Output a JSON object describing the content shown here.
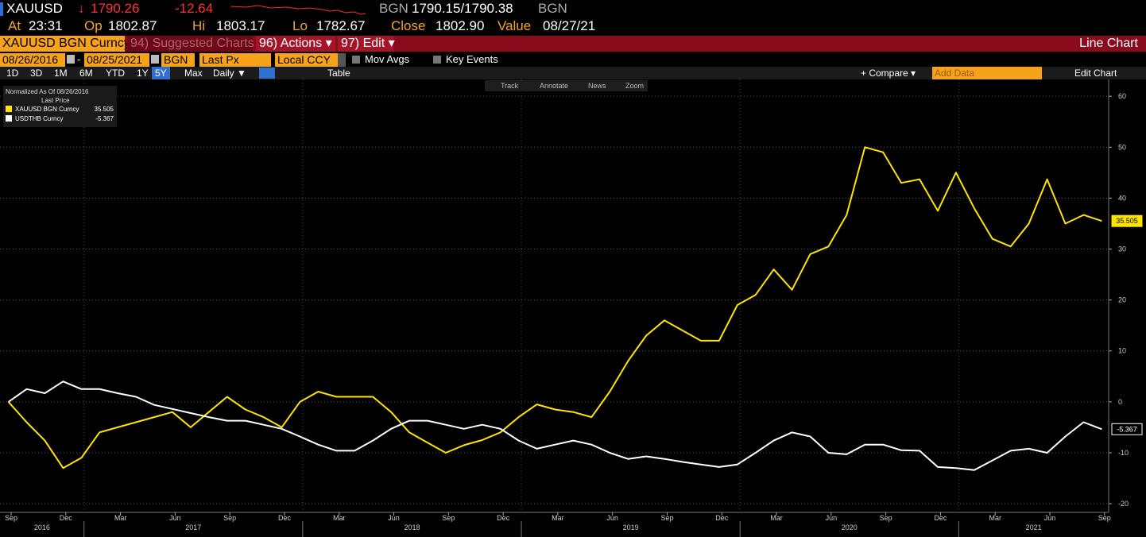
{
  "header": {
    "ticker": "XAUUSD",
    "direction": "↓",
    "last": "1790.26",
    "change": "-12.64",
    "source": "BGN",
    "bid_ask": "1790.15/1790.38",
    "source_2": "BGN",
    "stats": [
      {
        "label": "At",
        "value": "23:31"
      },
      {
        "label": "Op",
        "value": "1802.87"
      },
      {
        "label": "Hi",
        "value": "1803.17"
      },
      {
        "label": "Lo",
        "value": "1782.67"
      },
      {
        "label": "Close",
        "value": "1802.90"
      },
      {
        "label": "Value",
        "value": "08/27/21"
      }
    ]
  },
  "menu_bar": {
    "security": "XAUUSD BGN Curncy",
    "items": [
      "94) Suggested Charts",
      "96) Actions ▾",
      "97) Edit ▾"
    ],
    "view": "Line Chart"
  },
  "settings": {
    "start": "08/26/2016",
    "separator": "-",
    "end": "08/25/2021",
    "source": "BGN",
    "field": "Last Px",
    "currency": "Local CCY",
    "options": [
      "Mov Avgs",
      "Key Events"
    ]
  },
  "range_bar": {
    "ranges": [
      "1D",
      "3D",
      "1M",
      "6M",
      "YTD",
      "1Y",
      "5Y",
      "Max"
    ],
    "active_index": 6,
    "frequency": "Daily ▼",
    "table": "Table",
    "compare": "+ Compare ▾",
    "add_data": "Add Data",
    "edit_chart": "Edit Chart"
  },
  "chart_tools": [
    "Track",
    "Annotate",
    "News",
    "Zoom"
  ],
  "chart_data": {
    "type": "line",
    "note": "Normalized As Of 08/26/2016",
    "legend_header": "Last Price",
    "legend": "top-left",
    "grid": true,
    "x": [
      "2016-08",
      "2016-09",
      "2016-10",
      "2016-11",
      "2016-12",
      "2017-01",
      "2017-02",
      "2017-03",
      "2017-04",
      "2017-05",
      "2017-06",
      "2017-07",
      "2017-08",
      "2017-09",
      "2017-10",
      "2017-11",
      "2017-12",
      "2018-01",
      "2018-02",
      "2018-03",
      "2018-04",
      "2018-05",
      "2018-06",
      "2018-07",
      "2018-08",
      "2018-09",
      "2018-10",
      "2018-11",
      "2018-12",
      "2019-01",
      "2019-02",
      "2019-03",
      "2019-04",
      "2019-05",
      "2019-06",
      "2019-07",
      "2019-08",
      "2019-09",
      "2019-10",
      "2019-11",
      "2019-12",
      "2020-01",
      "2020-02",
      "2020-03",
      "2020-04",
      "2020-05",
      "2020-06",
      "2020-07",
      "2020-08",
      "2020-09",
      "2020-10",
      "2020-11",
      "2020-12",
      "2021-01",
      "2021-02",
      "2021-03",
      "2021-04",
      "2021-05",
      "2021-06",
      "2021-07",
      "2021-08"
    ],
    "series": [
      {
        "name": "XAUUSD BGN Curncy",
        "color": "#ffe400",
        "values": [
          0,
          -4,
          -7.6,
          -13,
          -11,
          -6,
          -5,
          -4,
          -3,
          -2,
          -5,
          -2,
          1,
          -1.5,
          -3,
          -5,
          0,
          2,
          1,
          1,
          1,
          -2,
          -6,
          -8,
          -10,
          -8.5,
          -7.5,
          -6,
          -3,
          -0.5,
          -1.5,
          -2,
          -3,
          2,
          8,
          13,
          16,
          14,
          12,
          12,
          19,
          21,
          26,
          22,
          29,
          30.5,
          36.7,
          50,
          49,
          43,
          43.7,
          37.5,
          45,
          38,
          32,
          30.5,
          35,
          43.7,
          35,
          36.7,
          35.505
        ]
      },
      {
        "name": "USDTHB Curncy",
        "color": "#ffffff",
        "values": [
          0,
          2.5,
          1.7,
          4,
          2.5,
          2.5,
          1.7,
          1,
          -0.6,
          -1.4,
          -2.2,
          -3,
          -3.7,
          -3.7,
          -4.5,
          -5.3,
          -6.8,
          -8.4,
          -9.6,
          -9.6,
          -7.6,
          -5.3,
          -3.7,
          -3.7,
          -4.5,
          -5.3,
          -4.5,
          -5.3,
          -7.6,
          -9.2,
          -8.4,
          -7.6,
          -8.4,
          -10,
          -11.2,
          -10.7,
          -11.2,
          -11.8,
          -12.3,
          -12.8,
          -12.3,
          -10,
          -7.6,
          -6,
          -6.8,
          -10,
          -10.3,
          -8.4,
          -8.4,
          -9.5,
          -9.6,
          -12.8,
          -13,
          -13.4,
          -11.5,
          -9.6,
          -9.2,
          -10,
          -6.8,
          -4,
          -5.367
        ]
      }
    ],
    "ylim": [
      -21.7,
      63.3
    ],
    "yticks": [
      60,
      50,
      40,
      30,
      20,
      10,
      0,
      -10,
      -20
    ],
    "xticks": [
      {
        "value": "2016-09",
        "label": "Sep"
      },
      {
        "value": "2016-12",
        "label": "Dec"
      },
      {
        "value": "2017-03",
        "label": "Mar"
      },
      {
        "value": "2017-06",
        "label": "Jun"
      },
      {
        "value": "2017-09",
        "label": "Sep"
      },
      {
        "value": "2017-12",
        "label": "Dec"
      },
      {
        "value": "2018-03",
        "label": "Mar"
      },
      {
        "value": "2018-06",
        "label": "Jun"
      },
      {
        "value": "2018-09",
        "label": "Sep"
      },
      {
        "value": "2018-12",
        "label": "Dec"
      },
      {
        "value": "2019-03",
        "label": "Mar"
      },
      {
        "value": "2019-06",
        "label": "Jun"
      },
      {
        "value": "2019-09",
        "label": "Sep"
      },
      {
        "value": "2019-12",
        "label": "Dec"
      },
      {
        "value": "2020-03",
        "label": "Mar"
      },
      {
        "value": "2020-06",
        "label": "Jun"
      },
      {
        "value": "2020-09",
        "label": "Sep"
      },
      {
        "value": "2020-12",
        "label": "Dec"
      },
      {
        "value": "2021-03",
        "label": "Mar"
      },
      {
        "value": "2021-06",
        "label": "Jun"
      },
      {
        "value": "2021-09",
        "label": "Sep"
      }
    ],
    "x_year_labels": [
      "2016",
      "2017",
      "2018",
      "2019",
      "2020",
      "2021"
    ]
  }
}
